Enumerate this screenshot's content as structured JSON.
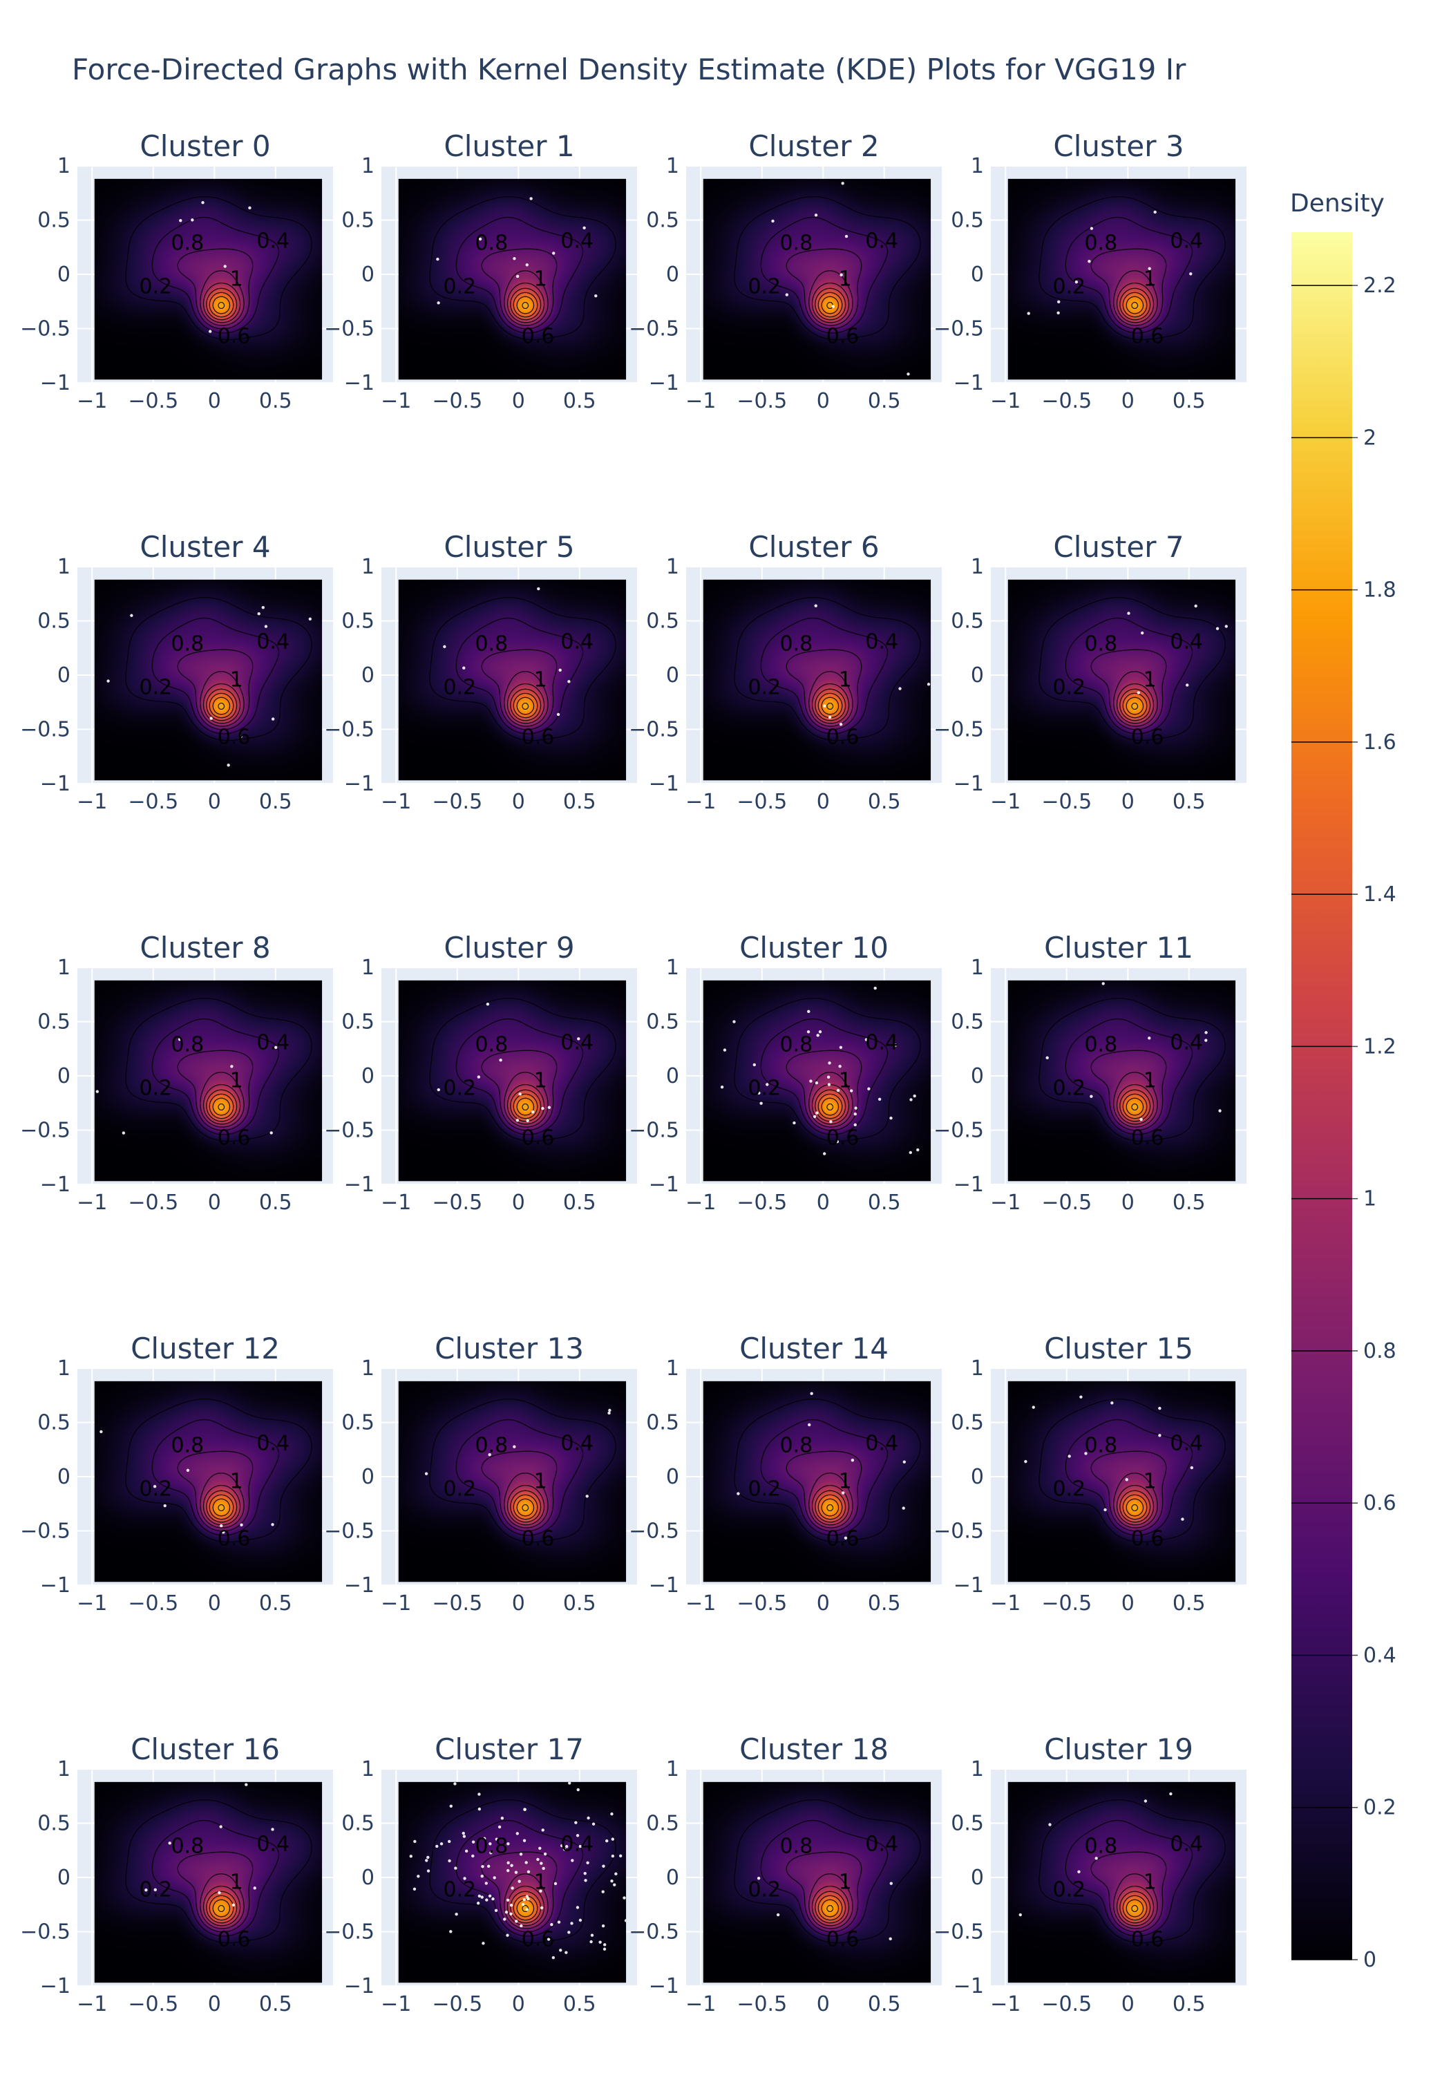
{
  "chart": {
    "title": "Force-Directed Graphs with Kernel Density Estimate (KDE) Plots for VGG19 Ir",
    "colorbar_title": "Density"
  },
  "colors": {
    "scale": [
      "#000004",
      "#1b0c41",
      "#4a0c6b",
      "#781c6d",
      "#a52c60",
      "#cf4446",
      "#ed6925",
      "#fb9b06",
      "#f7d13d",
      "#fcffa4"
    ],
    "plot_bg": "#e5ecf6",
    "text": "#2a3f5f",
    "contour_line": "#000000",
    "node": "#ffffff"
  },
  "chart_data": {
    "type": "heatmap",
    "subplot_count": 20,
    "grid_rows": 5,
    "grid_cols": 4,
    "subplot_titles": [
      "Cluster 0",
      "Cluster 1",
      "Cluster 2",
      "Cluster 3",
      "Cluster 4",
      "Cluster 5",
      "Cluster 6",
      "Cluster 7",
      "Cluster 8",
      "Cluster 9",
      "Cluster 10",
      "Cluster 11",
      "Cluster 12",
      "Cluster 13",
      "Cluster 14",
      "Cluster 15",
      "Cluster 16",
      "Cluster 17",
      "Cluster 18",
      "Cluster 19"
    ],
    "xrange": [
      -1.12,
      0.97
    ],
    "yrange": [
      -1,
      1
    ],
    "data_extent": {
      "x": [
        -0.98,
        0.88
      ],
      "y": [
        -0.97,
        0.88
      ]
    },
    "x_ticks": [
      "−1",
      "−0.5",
      "0",
      "0.5"
    ],
    "x_tick_values": [
      -1,
      -0.5,
      0,
      0.5
    ],
    "y_ticks": [
      "1",
      "0.5",
      "0",
      "−0.5",
      "−1"
    ],
    "y_tick_values": [
      1,
      0.5,
      0,
      -0.5,
      -1
    ],
    "colorbar": {
      "range": [
        0,
        2.27
      ],
      "tick_values": [
        0,
        0.2,
        0.4,
        0.6,
        0.8,
        1,
        1.2,
        1.4,
        1.6,
        1.8,
        2,
        2.2
      ],
      "tick_labels": [
        "0",
        "0.2",
        "0.4",
        "0.6",
        "0.8",
        "1",
        "1.2",
        "1.4",
        "1.6",
        "1.8",
        "2",
        "2.2"
      ]
    },
    "contour_levels": [
      0.2,
      0.4,
      0.6,
      0.8,
      1.0,
      1.2,
      1.4,
      1.6,
      1.8,
      2.0,
      2.2
    ],
    "contour_labels": [
      {
        "text": "0.8",
        "x": -0.22,
        "y": 0.28
      },
      {
        "text": "0.4",
        "x": 0.48,
        "y": 0.3
      },
      {
        "text": "0.2",
        "x": -0.48,
        "y": -0.12
      },
      {
        "text": "1",
        "x": 0.18,
        "y": -0.05
      },
      {
        "text": "0.6",
        "x": 0.16,
        "y": -0.58
      }
    ],
    "kde_components": [
      {
        "x": 0.05,
        "y": -0.3,
        "sx": 0.12,
        "sy": 0.13,
        "w": 1.55
      },
      {
        "x": -0.12,
        "y": 0.02,
        "sx": 0.26,
        "sy": 0.17,
        "w": 0.42
      },
      {
        "x": 0.2,
        "y": 0.0,
        "sx": 0.2,
        "sy": 0.3,
        "w": 0.32
      },
      {
        "x": -0.35,
        "y": 0.3,
        "sx": 0.3,
        "sy": 0.25,
        "w": 0.35
      },
      {
        "x": 0.45,
        "y": 0.2,
        "sx": 0.28,
        "sy": 0.25,
        "w": 0.25
      },
      {
        "x": -0.05,
        "y": 0.55,
        "sx": 0.2,
        "sy": 0.18,
        "w": 0.2
      },
      {
        "x": -0.6,
        "y": -0.15,
        "sx": 0.25,
        "sy": 0.18,
        "w": 0.15
      },
      {
        "x": 0.4,
        "y": -0.45,
        "sx": 0.25,
        "sy": 0.2,
        "w": 0.18
      },
      {
        "x": 0.65,
        "y": 0.35,
        "sx": 0.2,
        "sy": 0.2,
        "w": 0.12
      }
    ],
    "cluster_node_counts": [
      6,
      10,
      8,
      9,
      10,
      7,
      6,
      8,
      6,
      12,
      40,
      8,
      9,
      7,
      8,
      12,
      10,
      130,
      6,
      8
    ]
  }
}
